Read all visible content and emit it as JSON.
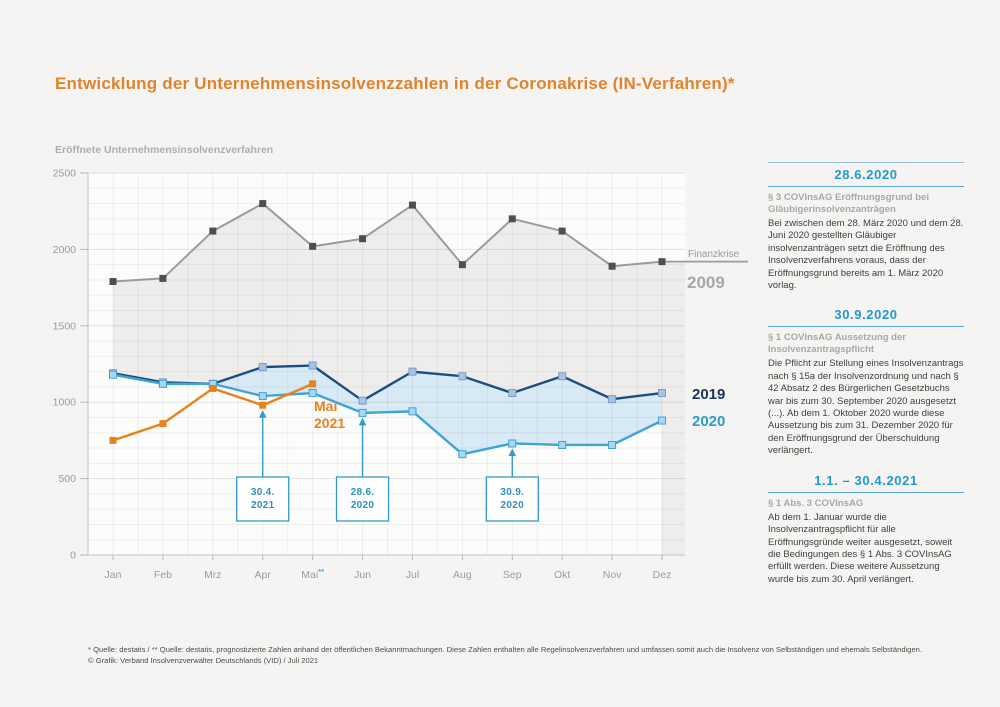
{
  "title": "Entwicklung der Unternehmensinsolvenzzahlen in der Coronakrise (IN-Verfahren)*",
  "y_axis_title": "Eröffnete Unternehmensinsolvenzverfahren",
  "chart_data": {
    "type": "line",
    "categories": [
      "Jan",
      "Feb",
      "Mrz",
      "Apr",
      "Mai",
      "Jun",
      "Jul",
      "Aug",
      "Sep",
      "Okt",
      "Nov",
      "Dez"
    ],
    "x_superscript": {
      "month": "Mai",
      "mark": "**"
    },
    "ylim": [
      0,
      2500
    ],
    "y_ticks": [
      0,
      500,
      1000,
      1500,
      2000,
      2500
    ],
    "grid": "on",
    "series": [
      {
        "name": "2009",
        "legend": "Finanzkrise 2009",
        "color": "#9b9b99",
        "width": 2,
        "marker_fill": "#4f4f4d",
        "marker_stroke": "none",
        "fill_below": "#eeedeb",
        "values": [
          1790,
          1810,
          2120,
          2300,
          2020,
          2070,
          2290,
          1900,
          2200,
          2120,
          1890,
          1920
        ]
      },
      {
        "name": "2019",
        "legend": "2019",
        "color": "#1d4e7e",
        "width": 2.4,
        "marker_fill": "#a9c3e3",
        "marker_stroke": "#7d9cc9",
        "fill_below": "#fcfcfb",
        "values": [
          1190,
          1130,
          1120,
          1230,
          1240,
          1010,
          1200,
          1170,
          1060,
          1170,
          1020,
          1060
        ]
      },
      {
        "name": "2020",
        "legend": "2020",
        "color": "#3fa3d3",
        "width": 2.4,
        "marker_fill": "#a6d9f1",
        "marker_stroke": "#3fa3d3",
        "fill_between_prev": "#d8eaf6",
        "values": [
          1180,
          1120,
          1120,
          1040,
          1060,
          930,
          940,
          660,
          730,
          720,
          720,
          880
        ]
      },
      {
        "name": "2021",
        "legend": "Mai 2021",
        "color": "#e8821c",
        "width": 2.4,
        "marker_fill": "#e8821c",
        "marker_stroke": "none",
        "values": [
          750,
          860,
          1090,
          980,
          1120
        ]
      }
    ],
    "legend": {
      "finanzkrise": "Finanzkrise",
      "y2009": "2009",
      "y2019": "2019",
      "y2020": "2020"
    },
    "mai_label": {
      "line1": "Mai",
      "line2": "2021"
    },
    "annotations": [
      {
        "line1": "30.4.",
        "line2": "2021",
        "month_index": 3,
        "series": "2021"
      },
      {
        "line1": "28.6.",
        "line2": "2020",
        "month_index": 5,
        "series": "2020"
      },
      {
        "line1": "30.9.",
        "line2": "2020",
        "month_index": 8,
        "series": "2020"
      }
    ],
    "annotation_color": "#3399cc"
  },
  "sidebar": {
    "sections": [
      {
        "heading": "28.6.2020",
        "subheading": "§ 3 COVInsAG Eröffnungsgrund bei Gläubigerinsolvenzanträgen",
        "body": "Bei zwischen dem 28. März 2020 und dem 28. Juni 2020 gestellten Gläubiger insolvenzanträgen setzt die Eröffnung des Insolvenzverfahrens voraus, dass der Eröffnungsgrund bereits am 1. März 2020 vorlag."
      },
      {
        "heading": "30.9.2020",
        "subheading": "§ 1 COVInsAG Aussetzung der Insolvenzantragspflicht",
        "body": "Die Pflicht zur Stellung eines Insolvenzantrags nach § 15a der Insolvenzordnung und nach § 42 Absatz 2 des Bürgerlichen Gesetzbuchs war bis zum 30. September 2020 ausgesetzt (...). Ab dem 1. Oktober 2020 wurde diese Aussetzung bis zum 31. Dezember 2020 für den Eröffnungsgrund der Überschuldung verlängert."
      },
      {
        "heading": "1.1. – 30.4.2021",
        "subheading": "§ 1 Abs. 3 COVInsAG",
        "body": "Ab dem 1. Januar wurde die Insolvenzantragspflicht für alle Eröffnungsgründe weiter ausgesetzt, soweit die Bedingungen des § 1 Abs. 3 COVInsAG erfüllt werden. Diese weitere Aussetzung wurde bis zum 30. April verlängert."
      }
    ]
  },
  "footer": {
    "line1": "* Quelle: destatis / ** Quelle: destatis, prognostizierte Zahlen anhand der öffentlichen Bekanntmachungen. Diese Zahlen enthalten alle Regelinsolvenzverfahren und umfassen somit auch die Insolvenz von Selbständigen und ehemals Selbständigen.",
    "line2": "© Grafik: Verband Insolvenzverwalter Deutschlands (VID) / Juli 2021"
  }
}
